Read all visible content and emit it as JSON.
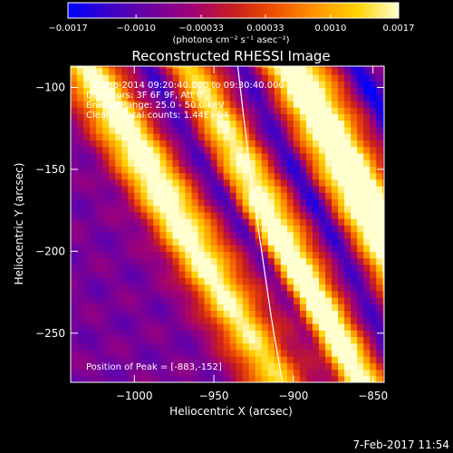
{
  "chart_data": {
    "type": "heatmap",
    "title": "Reconstructed RHESSI Image",
    "xlabel": "Heliocentric X (arcsec)",
    "ylabel": "Heliocentric Y (arcsec)",
    "xlim": [
      -1040,
      -843
    ],
    "ylim": [
      -280,
      -87
    ],
    "x_ticks": [
      {
        "value": -1000,
        "label": "−1000"
      },
      {
        "value": -950,
        "label": "−950"
      },
      {
        "value": -900,
        "label": "−900"
      },
      {
        "value": -850,
        "label": "−850"
      }
    ],
    "y_ticks": [
      {
        "value": -100,
        "label": "−100"
      },
      {
        "value": -150,
        "label": "−150"
      },
      {
        "value": -200,
        "label": "−200"
      },
      {
        "value": -250,
        "label": "−250"
      }
    ],
    "colorbar": {
      "min": -0.0017,
      "max": 0.0017,
      "units_label": "(photons cm⁻² s⁻¹ asec⁻²)",
      "ticks": [
        {
          "value": -0.0017,
          "label": "−0.0017"
        },
        {
          "value": -0.001,
          "label": "−0.0010"
        },
        {
          "value": -0.00033,
          "label": "−0.00033"
        },
        {
          "value": 0.00033,
          "label": "0.00033"
        },
        {
          "value": 0.001,
          "label": "0.0010"
        },
        {
          "value": 0.0017,
          "label": "0.0017"
        }
      ],
      "colors": [
        "#0000ff",
        "#3c00c8",
        "#6e00a0",
        "#a00078",
        "#c81e1e",
        "#f05000",
        "#ff9600",
        "#ffd200",
        "#ffffd0"
      ]
    },
    "annotations": {
      "time_range": "2-Sep-2014 09:20:40.000 to 09:30:40.000",
      "detectors": "Detectors: 3F 6F 9F, Att 0",
      "energy_range": "Energy Range: 25.0 - 50.0 keV",
      "clean_info": "Clean    Total counts: 1.44E+04",
      "peak_position": "Position of Peak = [-883,-152]"
    },
    "peak": {
      "x": -883,
      "y": -152
    },
    "limb_curve": [
      {
        "x": -935,
        "y": -87
      },
      {
        "x": -931,
        "y": -120
      },
      {
        "x": -926,
        "y": -160
      },
      {
        "x": -920,
        "y": -200
      },
      {
        "x": -914,
        "y": -240
      },
      {
        "x": -907,
        "y": -280
      }
    ],
    "bands": [
      {
        "x_at_top": -1030,
        "slope": 0.62,
        "halfwidth": 20,
        "peak_y": -150,
        "intensity": 0.85
      },
      {
        "x_at_top": -965,
        "slope": 0.55,
        "halfwidth": 17,
        "peak_y": -230,
        "intensity": 0.9
      },
      {
        "x_at_top": -900,
        "slope": 0.55,
        "halfwidth": 21,
        "peak_y": -152,
        "intensity": 1.0
      }
    ],
    "background_level": -0.45
  },
  "footer": {
    "timestamp": "7-Feb-2017 11:54"
  }
}
